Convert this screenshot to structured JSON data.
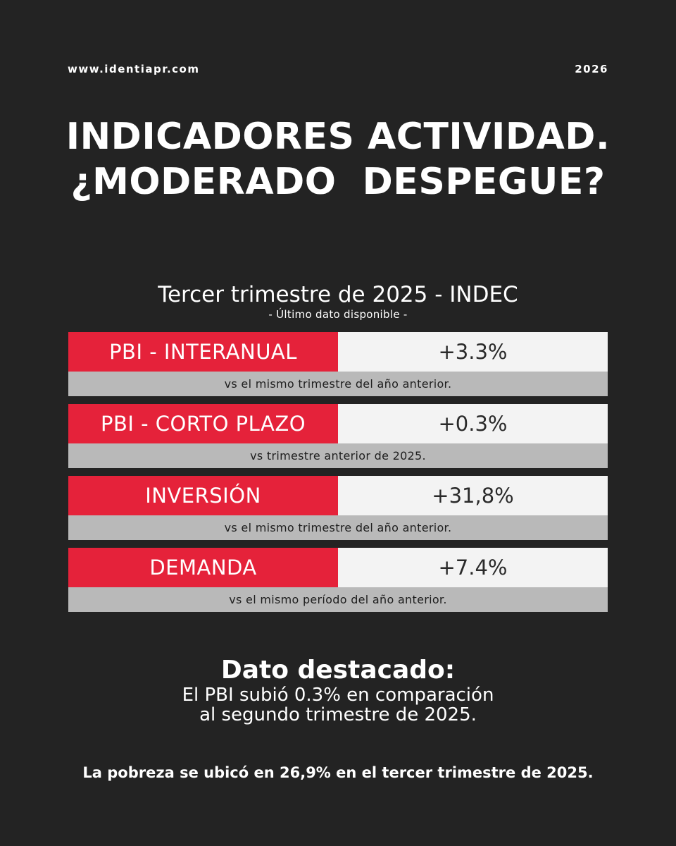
{
  "header": {
    "website": "www.identiapr.com",
    "year": "2026"
  },
  "title": {
    "line1": "INDICADORES ACTIVIDAD.",
    "line2": "¿MODERADO  DESPEGUE?"
  },
  "section": {
    "subtitle": "Tercer trimestre de 2025 - INDEC",
    "note": "- Último dato disponible -"
  },
  "indicators": [
    {
      "label": "PBI - INTERANUAL",
      "value": "+3.3%",
      "note": "vs el mismo trimestre del año anterior."
    },
    {
      "label": "PBI - CORTO PLAZO",
      "value": "+0.3%",
      "note": "vs trimestre anterior de 2025."
    },
    {
      "label": "INVERSIÓN",
      "value": "+31,8%",
      "note": "vs el mismo trimestre del año anterior."
    },
    {
      "label": "DEMANDA",
      "value": "+7.4%",
      "note": "vs el mismo período del año anterior."
    }
  ],
  "highlight": {
    "heading": "Dato destacado:",
    "line1": "El PBI subió 0.3% en comparación",
    "line2": "al segundo trimestre de 2025."
  },
  "footer": {
    "note": "La pobreza se ubicó en 26,9% en el tercer trimestre de 2025."
  },
  "colors": {
    "background": "#232323",
    "accent_red": "#e5223a",
    "value_bg": "#f3f3f3",
    "note_bg": "#b9b9b9"
  }
}
